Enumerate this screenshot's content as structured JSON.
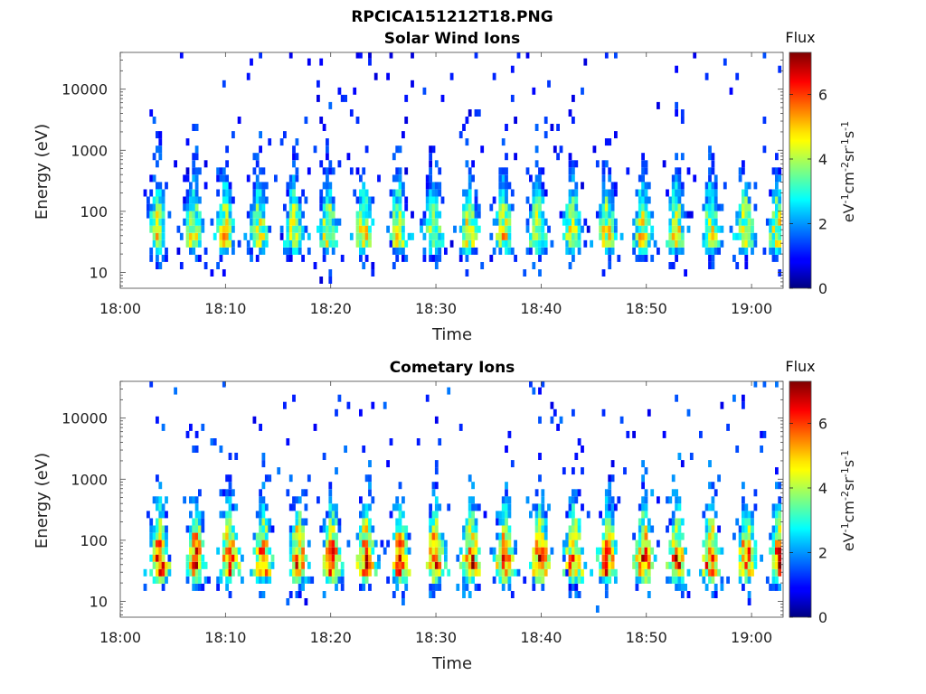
{
  "figure_title": "RPCICA151212T18.PNG",
  "chart_data": [
    {
      "type": "heatmap",
      "title": "Solar Wind Ions",
      "xlabel": "Time",
      "ylabel": "Energy (eV)",
      "x_ticks": [
        "18:00",
        "18:10",
        "18:20",
        "18:30",
        "18:40",
        "18:50",
        "19:00"
      ],
      "y_ticks": [
        "10",
        "100",
        "1000",
        "10000"
      ],
      "y_scale": "log",
      "ylim": [
        5.5,
        40000
      ],
      "xlim_minutes": [
        0,
        63
      ],
      "colorbar": {
        "title": "Flux",
        "label": "eV-1cm-2sr-1s-1",
        "ticks": [
          "0",
          "2",
          "4",
          "6"
        ],
        "range": [
          0,
          7.3
        ]
      },
      "burst_times_min": [
        3.4,
        6.8,
        9.8,
        13.0,
        16.4,
        19.6,
        23.0,
        26.3,
        29.6,
        33.0,
        36.3,
        39.5,
        42.8,
        46.1,
        49.5,
        52.7,
        56.0,
        59.3,
        62.3
      ],
      "peak_energy_eV": 35,
      "peak_flux": 5.0,
      "background_flux": 1.0
    },
    {
      "type": "heatmap",
      "title": "Cometary Ions",
      "xlabel": "Time",
      "ylabel": "Energy (eV)",
      "x_ticks": [
        "18:00",
        "18:10",
        "18:20",
        "18:30",
        "18:40",
        "18:50",
        "19:00"
      ],
      "y_ticks": [
        "10",
        "100",
        "1000",
        "10000"
      ],
      "y_scale": "log",
      "ylim": [
        5.5,
        40000
      ],
      "xlim_minutes": [
        0,
        63
      ],
      "colorbar": {
        "title": "Flux",
        "label": "eV-1cm-2sr-1s-1",
        "ticks": [
          "0",
          "2",
          "4",
          "6"
        ],
        "range": [
          0,
          7.3
        ]
      },
      "burst_times_min": [
        3.6,
        7.0,
        10.2,
        13.4,
        16.8,
        20.0,
        23.2,
        26.5,
        29.8,
        33.2,
        36.4,
        39.8,
        43.0,
        46.2,
        49.6,
        52.8,
        56.0,
        59.4,
        62.4
      ],
      "peak_energy_eV": 35,
      "peak_flux": 6.7,
      "background_flux": 1.2
    }
  ]
}
